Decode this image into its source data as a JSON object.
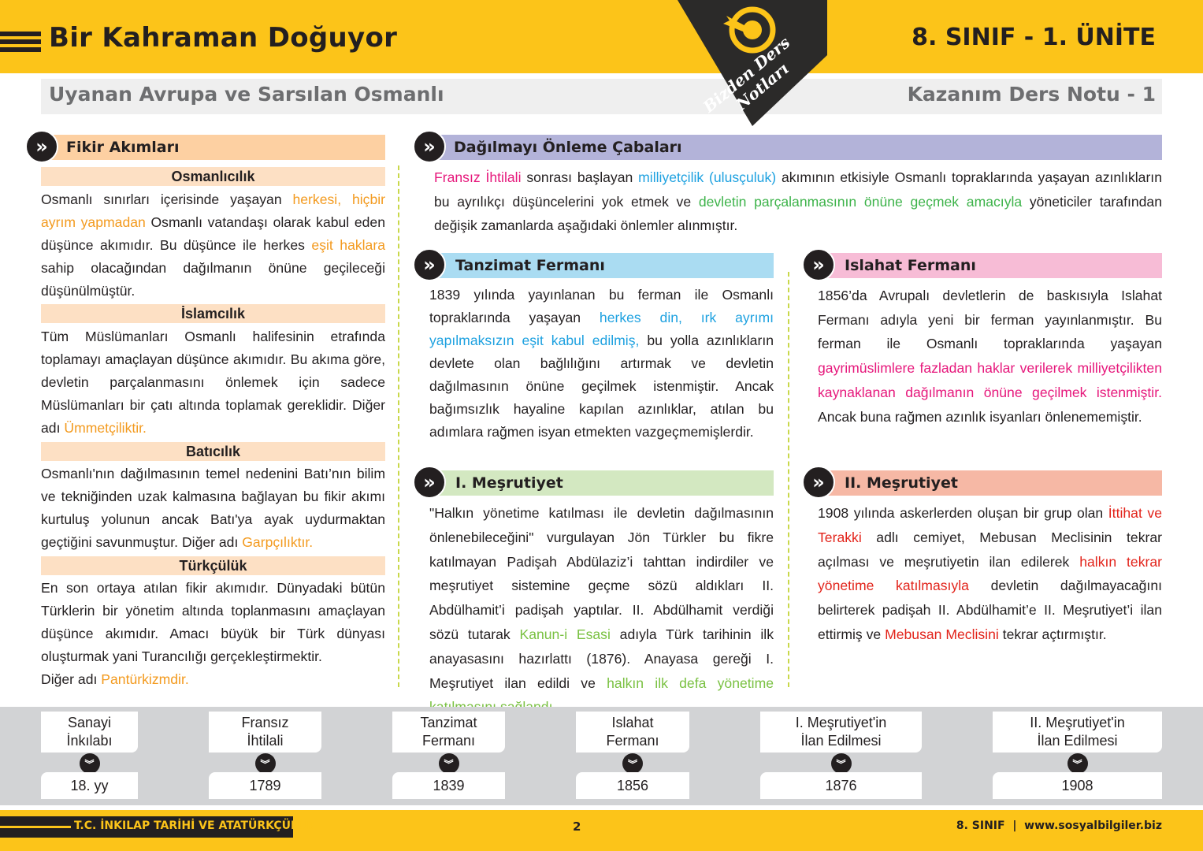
{
  "header": {
    "title": "Bir Kahraman Doğuyor",
    "unit": "8. SINIF - 1. ÜNİTE",
    "subtitle": "Uyanan Avrupa ve Sarsılan Osmanlı",
    "kazanim": "Kazanım Ders Notu - 1",
    "logo_text": "Bizden Ders Notları",
    "menu_icon": "hamburger-icon"
  },
  "colors": {
    "yellow": "#fcc419",
    "orange": "#f39a1e",
    "blue": "#1da1e0",
    "green": "#3db34a",
    "magenta": "#e6177b",
    "red": "#e2231a",
    "lightgreen": "#7ac142"
  },
  "sections": {
    "fikir": {
      "title": "Fikir Akımları",
      "items": [
        {
          "heading": "Osmanlıcılık",
          "text": [
            [
              "Osmanlı sınırları içerisinde yaşayan ",
              ""
            ],
            [
              "herkesi, hiçbir ayrım yapmadan",
              "orange"
            ],
            [
              " Osmanlı vatandaşı olarak kabul eden düşünce akımıdır. Bu düşünce ile herkes ",
              ""
            ],
            [
              "eşit haklara",
              "orange"
            ],
            [
              " sahip olacağından dağılmanın önüne geçileceği düşünülmüştür.",
              ""
            ]
          ]
        },
        {
          "heading": "İslamcılık",
          "text": [
            [
              "Tüm Müslümanları Osmanlı halifesinin etrafında toplamayı amaçlayan düşünce akımıdır. Bu akıma göre, devletin parçalanmasını önlemek için sadece Müslümanları bir çatı altında toplamak gereklidir. Diğer adı ",
              ""
            ],
            [
              "Ümmetçiliktir.",
              "orange"
            ]
          ]
        },
        {
          "heading": "Batıcılık",
          "text": [
            [
              "Osmanlı'nın dağılmasının temel nedenini Batı’nın bilim ve tekniğinden uzak kalmasına bağlayan bu fikir akımı kurtuluş yolunun ancak Batı'ya ayak uydurmaktan geçtiğini savunmuştur. Diğer adı ",
              ""
            ],
            [
              "Garpçılıktır.",
              "orange"
            ]
          ]
        },
        {
          "heading": "Türkçülük",
          "text": [
            [
              "En son ortaya atılan fikir akımıdır. Dünyadaki bütün Türklerin bir yönetim altında toplanmasını amaçlayan düşünce akımıdır. Amacı büyük bir Türk dünyası oluşturmak yani Turancılığı gerçekleştirmektir.",
              ""
            ]
          ],
          "text2": [
            [
              "Diğer adı ",
              ""
            ],
            [
              "Pantürkizmdir.",
              "orange"
            ]
          ]
        }
      ]
    },
    "dagilma": {
      "title": "Dağılmayı Önleme Çabaları",
      "text": [
        [
          "Fransız İhtilali",
          "magenta"
        ],
        [
          " sonrası başlayan ",
          ""
        ],
        [
          "milliyetçilik (ulusçuluk)",
          "blue"
        ],
        [
          " akımının etkisiyle Osmanlı topraklarında yaşayan azınlıkların bu ayrılıkçı düşüncelerini yok etmek ve ",
          ""
        ],
        [
          "devletin parçalanmasının önüne geçmek amacıyla",
          "green"
        ],
        [
          " yöneticiler tarafından değişik zamanlarda aşağıdaki önlemler alınmıştır.",
          ""
        ]
      ]
    },
    "tanzimat": {
      "title": "Tanzimat Fermanı",
      "text": [
        [
          "1839 yılında yayınlanan bu ferman ile Osmanlı topraklarında yaşayan ",
          ""
        ],
        [
          "herkes din, ırk ayrımı yapılmaksızın eşit kabul edilmiş,",
          "blue"
        ],
        [
          " bu yolla azınlıkların devlete olan bağlılığını artırmak ve devletin dağılmasının önüne geçilmek istenmiştir. Ancak bağımsızlık hayaline kapılan azınlıklar, atılan bu adımlara rağmen isyan etmekten vazgeçmemişlerdir.",
          ""
        ]
      ]
    },
    "islahat": {
      "title": "Islahat Fermanı",
      "text": [
        [
          "1856’da Avrupalı devletlerin de baskısıyla Islahat Fermanı adıyla yeni bir ferman yayınlanmıştır. Bu ferman ile Osmanlı topraklarında yaşayan ",
          ""
        ],
        [
          "gayrimüslimlere fazladan haklar verilerek milliyetçilikten kaynaklanan dağılmanın önüne geçilmek istenmiştir.",
          "magenta"
        ],
        [
          " Ancak buna rağmen azınlık isyanları önlenememiştir.",
          ""
        ]
      ]
    },
    "mesrutiyet1": {
      "title": "I. Meşrutiyet",
      "text": [
        [
          "\"Halkın yönetime katılması ile devletin dağılmasının önlenebileceğini\" vurgulayan Jön Türkler bu fikre katılmayan Padişah Abdülaziz’i tahttan indirdiler ve meşrutiyet sistemine geçme sözü aldıkları II. Abdülhamit’i padişah yaptılar. II. Abdülhamit verdiği sözü tutarak ",
          ""
        ],
        [
          "Kanun-i Esasi",
          "lightgreen"
        ],
        [
          " adıyla Türk tarihinin ilk anayasasını hazırlattı (1876). Anayasa gereği I. Meşrutiyet ilan edildi ve ",
          ""
        ],
        [
          "halkın ilk defa yönetime katılmasını sağlandı.",
          "lightgreen"
        ]
      ]
    },
    "mesrutiyet2": {
      "title": "II. Meşrutiyet",
      "text": [
        [
          "1908 yılında askerlerden oluşan bir grup olan ",
          ""
        ],
        [
          "İttihat ve Terakki",
          "red"
        ],
        [
          " adlı cemiyet, Mebusan Meclisinin tekrar açılması ve meşrutiyetin ilan edilerek ",
          ""
        ],
        [
          "halkın tekrar yönetime katılmasıyla",
          "red"
        ],
        [
          " devletin dağılmayacağını belirterek padişah II. Abdülhamit’e II. Meşrutiyet’i ilan ettirmiş ve ",
          ""
        ],
        [
          "Mebusan Meclisini",
          "red"
        ],
        [
          " tekrar açtırmıştır.",
          ""
        ]
      ]
    }
  },
  "timeline": [
    {
      "event": "Sanayi\nİnkılabı",
      "date": "18. yy"
    },
    {
      "event": "Fransız\nİhtilali",
      "date": "1789"
    },
    {
      "event": "Tanzimat\nFermanı",
      "date": "1839"
    },
    {
      "event": "Islahat\nFermanı",
      "date": "1856"
    },
    {
      "event": "I. Meşrutiyet'in\nİlan Edilmesi",
      "date": "1876"
    },
    {
      "event": "II. Meşrutiyet'in\nİlan Edilmesi",
      "date": "1908"
    }
  ],
  "footer": {
    "course": "T.C. İNKILAP TARİHİ VE ATATÜRKÇÜLÜK",
    "page": "2",
    "right": "8. SINIF  |  www.sosyalbilgiler.biz"
  }
}
